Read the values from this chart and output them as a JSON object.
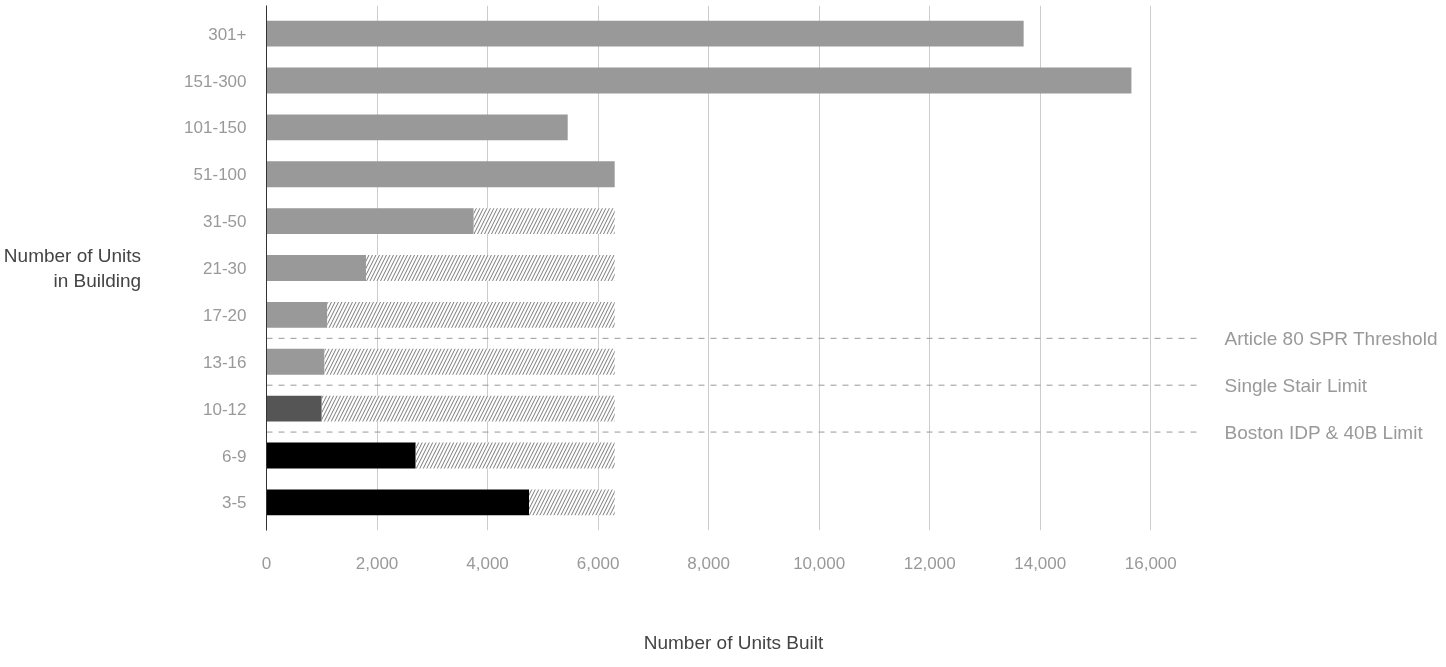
{
  "chart_data": {
    "type": "bar",
    "orientation": "horizontal",
    "stacked": true,
    "categories": [
      "301+",
      "151-300",
      "101-150",
      "51-100",
      "31-50",
      "21-30",
      "17-20",
      "13-16",
      "10-12",
      "6-9",
      "3-5"
    ],
    "series": [
      {
        "colors": [
          "#999999",
          "#999999",
          "#999999",
          "#999999",
          "#999999",
          "#999999",
          "#999999",
          "#999999",
          "#555555",
          "#000000",
          "#000000"
        ],
        "values": [
          13700,
          15650,
          5450,
          6300,
          3750,
          1800,
          1100,
          1050,
          1000,
          2700,
          4750
        ]
      },
      {
        "color": "#555555",
        "values": [
          null,
          null,
          null,
          null,
          2550,
          4500,
          5200,
          5250,
          5300,
          3600,
          1550
        ]
      }
    ],
    "xlim": [
      0,
      16900
    ],
    "xticks": [
      {
        "value": 0,
        "label": "0"
      },
      {
        "value": 2000,
        "label": "2,000"
      },
      {
        "value": 4000,
        "label": "4,000"
      },
      {
        "value": 6000,
        "label": "6,000"
      },
      {
        "value": 8000,
        "label": "8,000"
      },
      {
        "value": 10000,
        "label": "10,000"
      },
      {
        "value": 12000,
        "label": "12,000"
      },
      {
        "value": 14000,
        "label": "14,000"
      },
      {
        "value": 16000,
        "label": "16,000"
      }
    ],
    "grid": "x",
    "xlabel": "Number of Units Built",
    "ylabel": "Number of Units in Building",
    "annotations": [
      "Article 80 SPR Threshold",
      "Single Stair Limit",
      "Boston IDP  &  40B Limit"
    ]
  }
}
